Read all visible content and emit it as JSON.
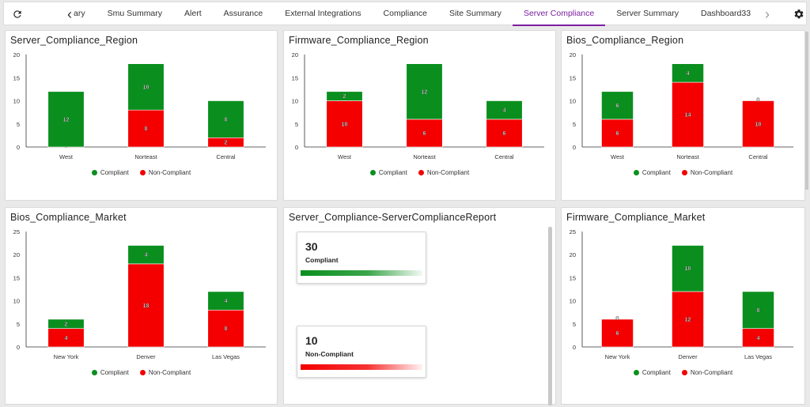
{
  "toolbar": {
    "refresh_icon": "refresh-icon",
    "settings_icon": "gear-icon",
    "prev_arrow": "‹",
    "next_arrow": "›",
    "tabs": [
      {
        "label": "ary",
        "active": false
      },
      {
        "label": "Smu Summary",
        "active": false
      },
      {
        "label": "Alert",
        "active": false
      },
      {
        "label": "Assurance",
        "active": false
      },
      {
        "label": "External Integrations",
        "active": false
      },
      {
        "label": "Compliance",
        "active": false
      },
      {
        "label": "Site Summary",
        "active": false
      },
      {
        "label": "Server Compliance",
        "active": true
      },
      {
        "label": "Server Summary",
        "active": false
      },
      {
        "label": "Dashboard33",
        "active": false
      }
    ]
  },
  "colors": {
    "compliant": "#0a8f1e",
    "non_compliant": "#f40000",
    "active_tab": "#7b1fa2"
  },
  "legend": {
    "compliant": "Compliant",
    "non_compliant": "Non-Compliant"
  },
  "report": {
    "title": "Server_Compliance-ServerComplianceReport",
    "kpis": [
      {
        "value": "30",
        "label": "Compliant",
        "color": "#0a8f1e"
      },
      {
        "value": "10",
        "label": "Non-Compliant",
        "color": "#f40000"
      }
    ]
  },
  "chart_data": [
    {
      "title": "Server_Compliance_Region",
      "type": "bar",
      "stacked": true,
      "categories": [
        "West",
        "Norteast",
        "Central"
      ],
      "ylim": [
        0,
        20
      ],
      "yticks": [
        0,
        5,
        10,
        15,
        20
      ],
      "series": [
        {
          "name": "Non-Compliant",
          "values": [
            0,
            8,
            2
          ],
          "labels": [
            "0",
            "8",
            "2"
          ]
        },
        {
          "name": "Compliant",
          "values": [
            12,
            10,
            8
          ],
          "labels": [
            "12",
            "10",
            "8"
          ]
        }
      ]
    },
    {
      "title": "Firmware_Compliance_Region",
      "type": "bar",
      "stacked": true,
      "categories": [
        "West",
        "Norteast",
        "Central"
      ],
      "ylim": [
        0,
        20
      ],
      "yticks": [
        0,
        5,
        10,
        15,
        20
      ],
      "series": [
        {
          "name": "Non-Compliant",
          "values": [
            10,
            6,
            6
          ],
          "labels": [
            "10",
            "6",
            "6"
          ]
        },
        {
          "name": "Compliant",
          "values": [
            2,
            12,
            4
          ],
          "labels": [
            "2",
            "12",
            "4"
          ]
        }
      ]
    },
    {
      "title": "Bios_Compliance_Region",
      "type": "bar",
      "stacked": true,
      "categories": [
        "West",
        "Norteast",
        "Central"
      ],
      "ylim": [
        0,
        20
      ],
      "yticks": [
        0,
        5,
        10,
        15,
        20
      ],
      "series": [
        {
          "name": "Non-Compliant",
          "values": [
            6,
            14,
            10
          ],
          "labels": [
            "6",
            "14",
            "10"
          ]
        },
        {
          "name": "Compliant",
          "values": [
            6,
            4,
            0
          ],
          "labels": [
            "6",
            "4",
            "0"
          ]
        }
      ]
    },
    {
      "title": "Bios_Compliance_Market",
      "type": "bar",
      "stacked": true,
      "categories": [
        "New York",
        "Denver",
        "Las Vegas"
      ],
      "ylim": [
        0,
        25
      ],
      "yticks": [
        0,
        5,
        10,
        15,
        20,
        25
      ],
      "series": [
        {
          "name": "Non-Compliant",
          "values": [
            4,
            18,
            8
          ],
          "labels": [
            "4",
            "18",
            "8"
          ]
        },
        {
          "name": "Compliant",
          "values": [
            2,
            4,
            4
          ],
          "labels": [
            "2",
            "4",
            "4"
          ]
        }
      ]
    },
    {
      "title": "Firmware_Compliance_Market",
      "type": "bar",
      "stacked": true,
      "categories": [
        "New York",
        "Denver",
        "Las Vegas"
      ],
      "ylim": [
        0,
        25
      ],
      "yticks": [
        0,
        5,
        10,
        15,
        20,
        25
      ],
      "series": [
        {
          "name": "Non-Compliant",
          "values": [
            6,
            12,
            4
          ],
          "labels": [
            "6",
            "12",
            "4"
          ]
        },
        {
          "name": "Compliant",
          "values": [
            0,
            10,
            8
          ],
          "labels": [
            "0",
            "10",
            "8"
          ]
        }
      ]
    }
  ]
}
